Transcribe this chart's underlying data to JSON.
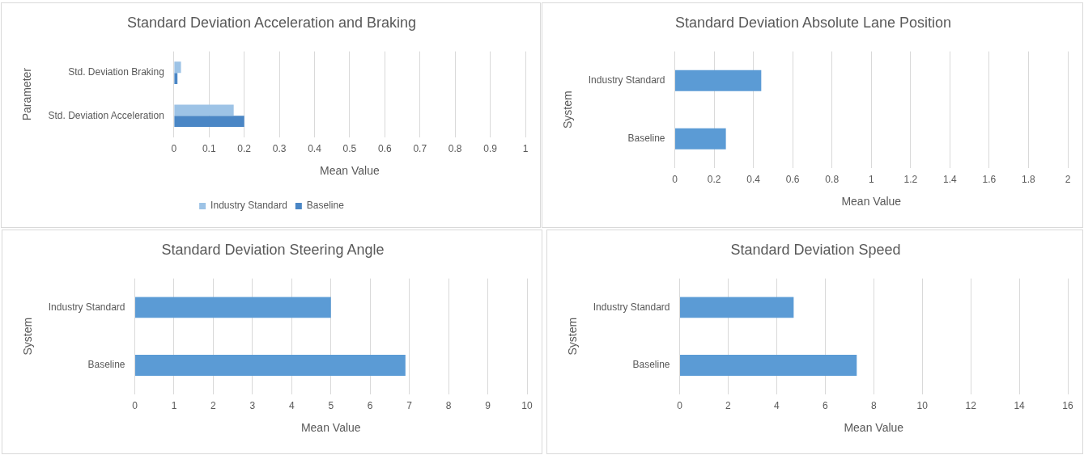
{
  "chart_data": [
    {
      "type": "bar",
      "orientation": "horizontal",
      "title": "Standard Deviation Acceleration and Braking",
      "xlabel": "Mean Value",
      "ylabel": "Parameter",
      "categories": [
        "Std. Deviation Braking",
        "Std. Deviation Acceleration"
      ],
      "series": [
        {
          "name": "Industry Standard",
          "color": "#9dc3e6",
          "values": [
            0.02,
            0.17
          ]
        },
        {
          "name": "Baseline",
          "color": "#4a86c5",
          "values": [
            0.01,
            0.2
          ]
        }
      ],
      "xlim": [
        0,
        1
      ],
      "xticks": [
        0,
        0.1,
        0.2,
        0.3,
        0.4,
        0.5,
        0.6,
        0.7,
        0.8,
        0.9,
        1
      ],
      "grid": "x",
      "legend": "bottom"
    },
    {
      "type": "bar",
      "orientation": "horizontal",
      "title": "Standard Deviation Absolute Lane Position",
      "xlabel": "Mean Value",
      "ylabel": "System",
      "categories": [
        "Industry Standard",
        "Baseline"
      ],
      "values": [
        0.44,
        0.26
      ],
      "color": "#5b9bd5",
      "xlim": [
        0,
        2
      ],
      "xticks": [
        0,
        0.2,
        0.4,
        0.6,
        0.8,
        1,
        1.2,
        1.4,
        1.6,
        1.8,
        2
      ],
      "grid": "x"
    },
    {
      "type": "bar",
      "orientation": "horizontal",
      "title": "Standard Deviation Steering Angle",
      "xlabel": "Mean Value",
      "ylabel": "System",
      "categories": [
        "Industry Standard",
        "Baseline"
      ],
      "values": [
        5,
        6.9
      ],
      "color": "#5b9bd5",
      "xlim": [
        0,
        10
      ],
      "xticks": [
        0,
        1,
        2,
        3,
        4,
        5,
        6,
        7,
        8,
        9,
        10
      ],
      "grid": "x"
    },
    {
      "type": "bar",
      "orientation": "horizontal",
      "title": "Standard Deviation Speed",
      "xlabel": "Mean Value",
      "ylabel": "System",
      "categories": [
        "Industry Standard",
        "Baseline"
      ],
      "values": [
        4.7,
        7.3
      ],
      "color": "#5b9bd5",
      "xlim": [
        0,
        16
      ],
      "xticks": [
        0,
        2,
        4,
        6,
        8,
        10,
        12,
        14,
        16
      ],
      "grid": "x"
    }
  ]
}
